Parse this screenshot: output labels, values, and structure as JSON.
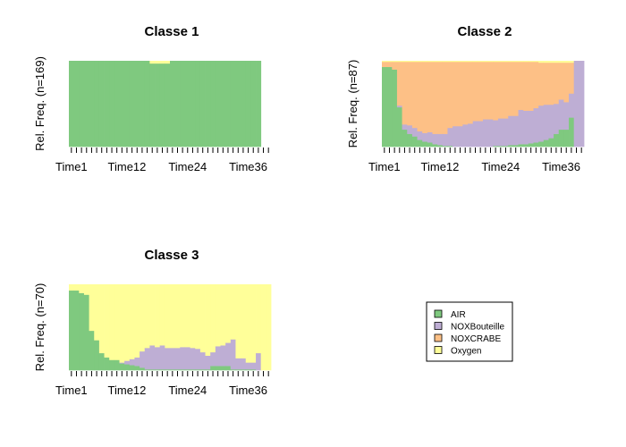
{
  "colors": {
    "AIR": "#7fc97f",
    "NOXBouteille": "#beaed4",
    "NOXCRABE": "#fdc086",
    "Oxygen": "#ffff99"
  },
  "legend": {
    "placement": "bottom-right panel",
    "entries": [
      "AIR",
      "NOXBouteille",
      "NOXCRABE",
      "Oxygen"
    ]
  },
  "chart_data": [
    {
      "type": "area",
      "title": "Classe 1",
      "ylabel": "Rel. Freq. (n=169)",
      "n_time": 40,
      "x_tick_labels": [
        {
          "pos": 1,
          "label": "Time1"
        },
        {
          "pos": 12,
          "label": "Time12"
        },
        {
          "pos": 24,
          "label": "Time24"
        },
        {
          "pos": 36,
          "label": "Time36"
        }
      ],
      "ylim": [
        0,
        1
      ],
      "state_order": [
        "AIR",
        "NOXBouteille",
        "NOXCRABE",
        "Oxygen"
      ],
      "series": [
        {
          "name": "AIR",
          "values": [
            1,
            1,
            1,
            1,
            1,
            1,
            1,
            1,
            1,
            1,
            1,
            1,
            1,
            1,
            1,
            1,
            0.97,
            0.97,
            0.97,
            0.97,
            1,
            1,
            1,
            1,
            1,
            1,
            1,
            1,
            1,
            1,
            1,
            1,
            1,
            1,
            1,
            1,
            1,
            1,
            0,
            0
          ]
        },
        {
          "name": "NOXBouteille",
          "values": [
            0,
            0,
            0,
            0,
            0,
            0,
            0,
            0,
            0,
            0,
            0,
            0,
            0,
            0,
            0,
            0,
            0,
            0,
            0,
            0,
            0,
            0,
            0,
            0,
            0,
            0,
            0,
            0,
            0,
            0,
            0,
            0,
            0,
            0,
            0,
            0,
            0,
            0,
            0,
            0
          ]
        },
        {
          "name": "NOXCRABE",
          "values": [
            0,
            0,
            0,
            0,
            0,
            0,
            0,
            0,
            0,
            0,
            0,
            0,
            0,
            0,
            0,
            0,
            0,
            0,
            0,
            0,
            0,
            0,
            0,
            0,
            0,
            0,
            0,
            0,
            0,
            0,
            0,
            0,
            0,
            0,
            0,
            0,
            0,
            0,
            0,
            0
          ]
        },
        {
          "name": "Oxygen",
          "values": [
            0,
            0,
            0,
            0,
            0,
            0,
            0,
            0,
            0,
            0,
            0,
            0,
            0,
            0,
            0,
            0,
            0.03,
            0.03,
            0.03,
            0.03,
            0,
            0,
            0,
            0,
            0,
            0,
            0,
            0,
            0,
            0,
            0,
            0,
            0,
            0,
            0,
            0,
            0,
            0,
            0,
            0
          ]
        }
      ]
    },
    {
      "type": "area",
      "title": "Classe 2",
      "ylabel": "Rel. Freq. (n=87)",
      "n_time": 40,
      "x_tick_labels": [
        {
          "pos": 1,
          "label": "Time1"
        },
        {
          "pos": 12,
          "label": "Time12"
        },
        {
          "pos": 24,
          "label": "Time24"
        },
        {
          "pos": 36,
          "label": "Time36"
        }
      ],
      "ylim": [
        0,
        1
      ],
      "state_order": [
        "AIR",
        "NOXBouteille",
        "NOXCRABE",
        "Oxygen"
      ],
      "series": [
        {
          "name": "AIR",
          "values": [
            0.93,
            0.93,
            0.9,
            0.46,
            0.2,
            0.15,
            0.12,
            0.08,
            0.06,
            0.05,
            0.03,
            0.02,
            0.01,
            0.01,
            0,
            0,
            0,
            0,
            0,
            0,
            0,
            0,
            0.01,
            0.01,
            0.01,
            0.02,
            0.02,
            0.03,
            0.03,
            0.04,
            0.05,
            0.06,
            0.08,
            0.1,
            0.15,
            0.2,
            0.2,
            0.34,
            0,
            0
          ]
        },
        {
          "name": "NOXBouteille",
          "values": [
            0,
            0,
            0,
            0.02,
            0.06,
            0.1,
            0.1,
            0.1,
            0.1,
            0.12,
            0.12,
            0.13,
            0.14,
            0.21,
            0.24,
            0.24,
            0.26,
            0.27,
            0.3,
            0.3,
            0.32,
            0.32,
            0.3,
            0.32,
            0.32,
            0.34,
            0.34,
            0.4,
            0.39,
            0.38,
            0.4,
            0.42,
            0.41,
            0.39,
            0.35,
            0.35,
            0.32,
            0.28,
            1,
            1
          ]
        },
        {
          "name": "NOXCRABE",
          "values": [
            0.06,
            0.06,
            0.09,
            0.51,
            0.73,
            0.74,
            0.77,
            0.81,
            0.83,
            0.82,
            0.84,
            0.84,
            0.84,
            0.77,
            0.75,
            0.75,
            0.73,
            0.72,
            0.69,
            0.69,
            0.67,
            0.67,
            0.68,
            0.66,
            0.66,
            0.63,
            0.63,
            0.56,
            0.57,
            0.57,
            0.54,
            0.5,
            0.49,
            0.49,
            0.48,
            0.43,
            0.46,
            0.36,
            0,
            0
          ]
        },
        {
          "name": "Oxygen",
          "values": [
            0.01,
            0.01,
            0.01,
            0.01,
            0.01,
            0.01,
            0.01,
            0.01,
            0.01,
            0.01,
            0.01,
            0.01,
            0.01,
            0.01,
            0.01,
            0.01,
            0.01,
            0.01,
            0.01,
            0.01,
            0.01,
            0.01,
            0.01,
            0.01,
            0.01,
            0.01,
            0.01,
            0.01,
            0.01,
            0.01,
            0.01,
            0.02,
            0.02,
            0.02,
            0.02,
            0.02,
            0.02,
            0.02,
            0,
            0
          ]
        }
      ]
    },
    {
      "type": "area",
      "title": "Classe 3",
      "ylabel": "Rel. Freq. (n=70)",
      "n_time": 40,
      "x_tick_labels": [
        {
          "pos": 1,
          "label": "Time1"
        },
        {
          "pos": 12,
          "label": "Time12"
        },
        {
          "pos": 24,
          "label": "Time24"
        },
        {
          "pos": 36,
          "label": "Time36"
        }
      ],
      "ylim": [
        0,
        1
      ],
      "state_order": [
        "AIR",
        "NOXBouteille",
        "NOXCRABE",
        "Oxygen"
      ],
      "series": [
        {
          "name": "AIR",
          "values": [
            0.93,
            0.93,
            0.9,
            0.88,
            0.46,
            0.35,
            0.2,
            0.15,
            0.12,
            0.12,
            0.08,
            0.07,
            0.06,
            0.05,
            0.03,
            0.01,
            0.01,
            0.01,
            0.01,
            0.01,
            0.01,
            0.01,
            0.01,
            0.01,
            0.01,
            0.01,
            0.01,
            0.01,
            0.05,
            0.05,
            0.05,
            0.05,
            0.01,
            0.01,
            0.01,
            0.01,
            0.01,
            0,
            0,
            0
          ]
        },
        {
          "name": "NOXBouteille",
          "values": [
            0,
            0,
            0,
            0,
            0,
            0,
            0,
            0,
            0,
            0,
            0.01,
            0.04,
            0.07,
            0.1,
            0.19,
            0.25,
            0.28,
            0.26,
            0.28,
            0.25,
            0.25,
            0.25,
            0.26,
            0.26,
            0.25,
            0.24,
            0.2,
            0.16,
            0.16,
            0.23,
            0.24,
            0.27,
            0.35,
            0.13,
            0.13,
            0.08,
            0.08,
            0.2,
            0,
            0
          ]
        },
        {
          "name": "NOXCRABE",
          "values": [
            0,
            0,
            0,
            0,
            0,
            0,
            0,
            0,
            0,
            0,
            0,
            0,
            0,
            0,
            0,
            0,
            0,
            0,
            0,
            0,
            0,
            0,
            0,
            0,
            0,
            0,
            0,
            0,
            0,
            0,
            0,
            0,
            0,
            0,
            0,
            0,
            0,
            0,
            0,
            0
          ]
        },
        {
          "name": "Oxygen",
          "values": [
            0.07,
            0.07,
            0.1,
            0.12,
            0.54,
            0.65,
            0.8,
            0.85,
            0.88,
            0.88,
            0.91,
            0.89,
            0.87,
            0.85,
            0.78,
            0.74,
            0.71,
            0.73,
            0.71,
            0.74,
            0.74,
            0.74,
            0.73,
            0.73,
            0.74,
            0.75,
            0.79,
            0.83,
            0.79,
            0.72,
            0.71,
            0.68,
            0.64,
            0.86,
            0.86,
            0.91,
            0.91,
            0.8,
            1,
            1
          ]
        }
      ]
    }
  ]
}
